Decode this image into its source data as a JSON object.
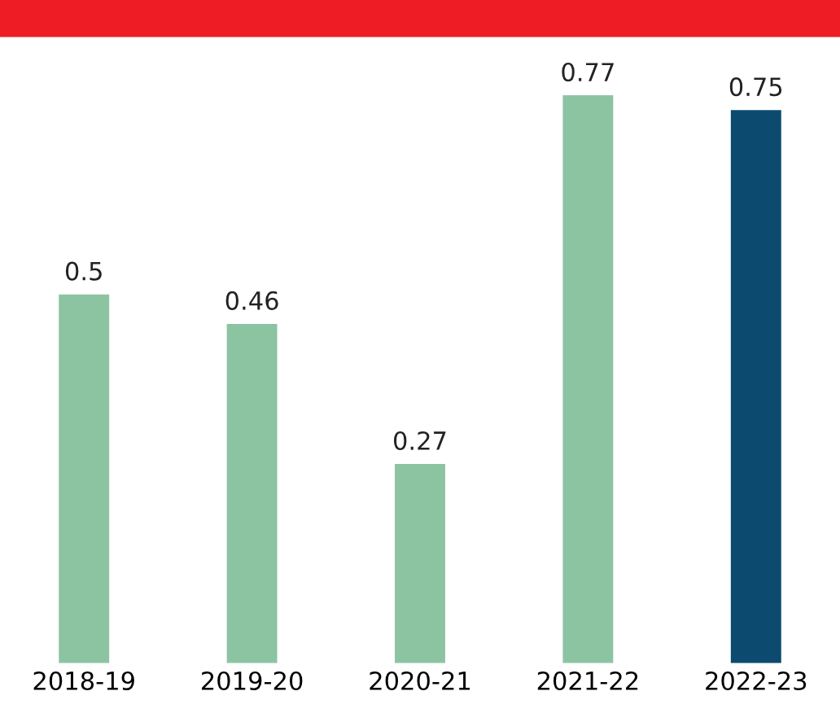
{
  "chart_data": {
    "type": "bar",
    "categories": [
      "2018-19",
      "2019-20",
      "2020-21",
      "2021-22",
      "2022-23"
    ],
    "values": [
      0.5,
      0.46,
      0.27,
      0.77,
      0.75
    ],
    "colors": [
      "#8cc4a2",
      "#8cc4a2",
      "#8cc4a2",
      "#8cc4a2",
      "#0d4a70"
    ],
    "data_labels": true
  }
}
